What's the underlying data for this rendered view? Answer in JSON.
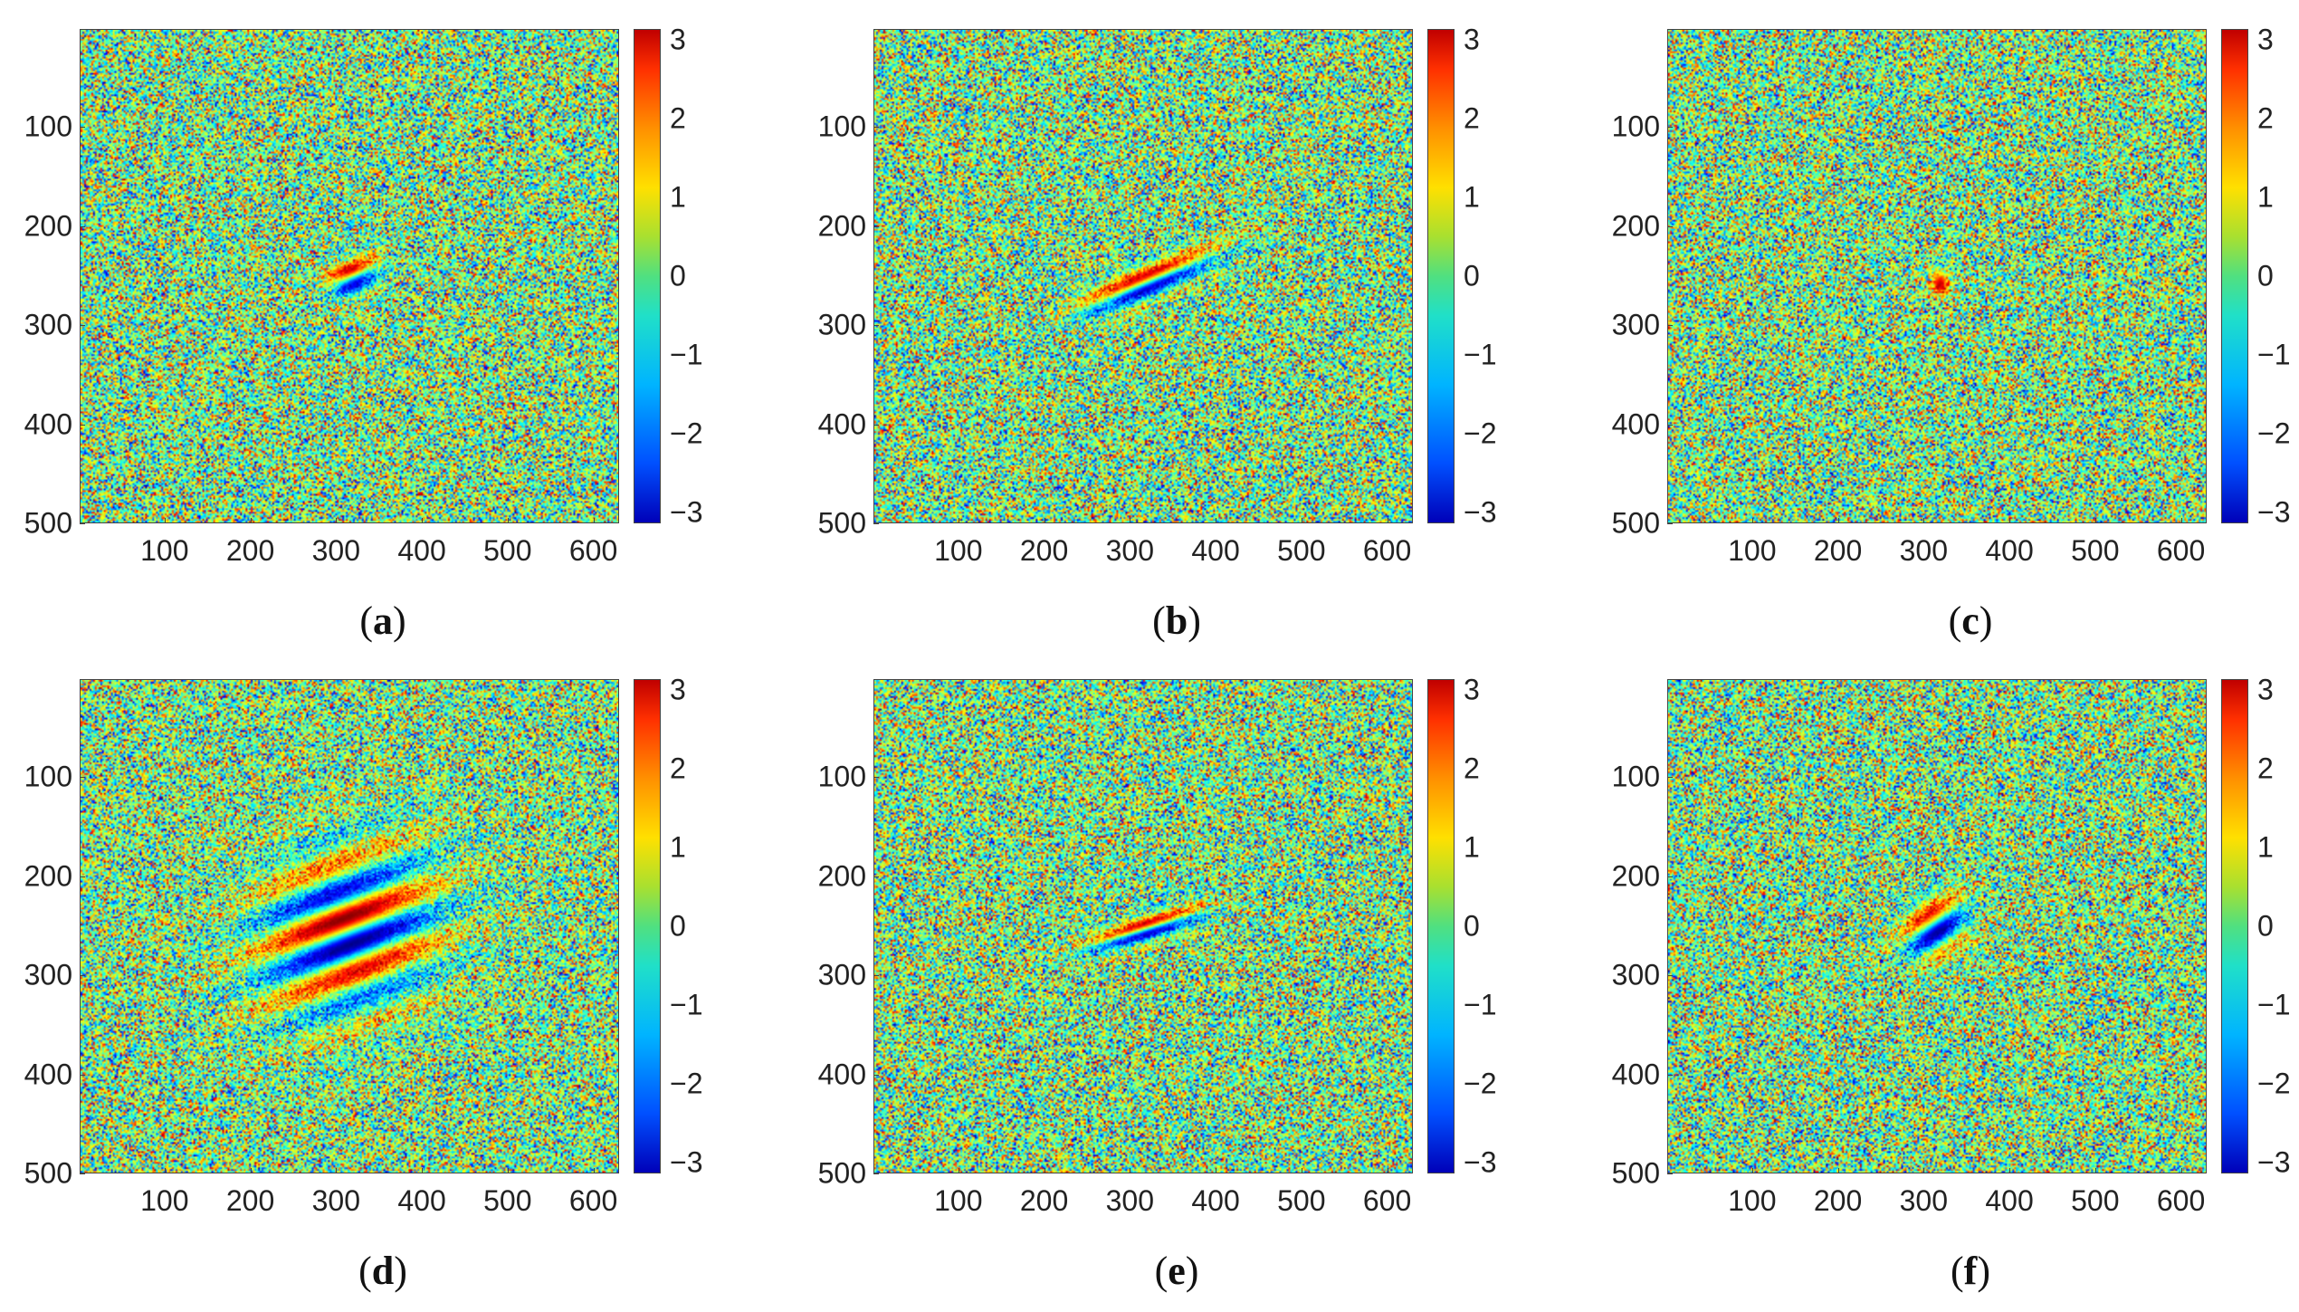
{
  "chart_data": [
    {
      "type": "heatmap",
      "panel_label": "a",
      "description_values": {
        "fringe_center": [
          318,
          250
        ],
        "fringe_length": 60,
        "fringe_width": 40,
        "fringe_angle_deg": -20,
        "fringe_cycles": 1
      },
      "xlim": [
        1,
        630
      ],
      "ylim": [
        1,
        500
      ],
      "x_ticks": [
        "100",
        "200",
        "300",
        "400",
        "500",
        "600"
      ],
      "y_ticks": [
        "100",
        "200",
        "300",
        "400",
        "500"
      ],
      "colorbar": {
        "range": [
          -3.14,
          3.14
        ],
        "ticks": [
          "3",
          "2",
          "1",
          "0",
          "−1",
          "−2",
          "−3"
        ],
        "colormap": "jet"
      }
    },
    {
      "type": "heatmap",
      "panel_label": "b",
      "description_values": {
        "fringe_center": [
          320,
          255
        ],
        "fringe_length": 170,
        "fringe_width": 36,
        "fringe_angle_deg": -20,
        "fringe_cycles": 1
      },
      "xlim": [
        1,
        630
      ],
      "ylim": [
        1,
        500
      ],
      "x_ticks": [
        "100",
        "200",
        "300",
        "400",
        "500",
        "600"
      ],
      "y_ticks": [
        "100",
        "200",
        "300",
        "400",
        "500"
      ],
      "colorbar": {
        "range": [
          -3.14,
          3.14
        ],
        "ticks": [
          "3",
          "2",
          "1",
          "0",
          "−1",
          "−2",
          "−3"
        ],
        "colormap": "jet"
      }
    },
    {
      "type": "heatmap",
      "panel_label": "c",
      "description_values": {
        "fringe_center": [
          318,
          255
        ],
        "fringe_length": 20,
        "fringe_width": 30,
        "fringe_angle_deg": 0,
        "fringe_cycles": 0.3
      },
      "xlim": [
        1,
        630
      ],
      "ylim": [
        1,
        500
      ],
      "x_ticks": [
        "100",
        "200",
        "300",
        "400",
        "500",
        "600"
      ],
      "y_ticks": [
        "100",
        "200",
        "300",
        "400",
        "500"
      ],
      "colorbar": {
        "range": [
          -3.14,
          3.14
        ],
        "ticks": [
          "3",
          "2",
          "1",
          "0",
          "−1",
          "−2",
          "−3"
        ],
        "colormap": "jet"
      }
    },
    {
      "type": "heatmap",
      "panel_label": "d",
      "description_values": {
        "fringe_center": [
          312,
          255
        ],
        "fringe_length": 230,
        "fringe_width": 170,
        "fringe_angle_deg": -18,
        "fringe_cycles": 3
      },
      "xlim": [
        1,
        630
      ],
      "ylim": [
        1,
        500
      ],
      "x_ticks": [
        "100",
        "200",
        "300",
        "400",
        "500",
        "600"
      ],
      "y_ticks": [
        "100",
        "200",
        "300",
        "400",
        "500"
      ],
      "colorbar": {
        "range": [
          -3.14,
          3.14
        ],
        "ticks": [
          "3",
          "2",
          "1",
          "0",
          "−1",
          "−2",
          "−3"
        ],
        "colormap": "jet"
      }
    },
    {
      "type": "heatmap",
      "panel_label": "e",
      "description_values": {
        "fringe_center": [
          318,
          252
        ],
        "fringe_length": 140,
        "fringe_width": 28,
        "fringe_angle_deg": -15,
        "fringe_cycles": 1
      },
      "xlim": [
        1,
        630
      ],
      "ylim": [
        1,
        500
      ],
      "x_ticks": [
        "100",
        "200",
        "300",
        "400",
        "500",
        "600"
      ],
      "y_ticks": [
        "100",
        "200",
        "300",
        "400",
        "500"
      ],
      "colorbar": {
        "range": [
          -3.14,
          3.14
        ],
        "ticks": [
          "3",
          "2",
          "1",
          "0",
          "−1",
          "−2",
          "−3"
        ],
        "colormap": "jet"
      }
    },
    {
      "type": "heatmap",
      "panel_label": "f",
      "description_values": {
        "fringe_center": [
          312,
          250
        ],
        "fringe_length": 80,
        "fringe_width": 60,
        "fringe_angle_deg": -30,
        "fringe_cycles": 1.2
      },
      "xlim": [
        1,
        630
      ],
      "ylim": [
        1,
        500
      ],
      "x_ticks": [
        "100",
        "200",
        "300",
        "400",
        "500",
        "600"
      ],
      "y_ticks": [
        "100",
        "200",
        "300",
        "400",
        "500"
      ],
      "colorbar": {
        "range": [
          -3.14,
          3.14
        ],
        "ticks": [
          "3",
          "2",
          "1",
          "0",
          "−1",
          "−2",
          "−3"
        ],
        "colormap": "jet"
      }
    }
  ]
}
